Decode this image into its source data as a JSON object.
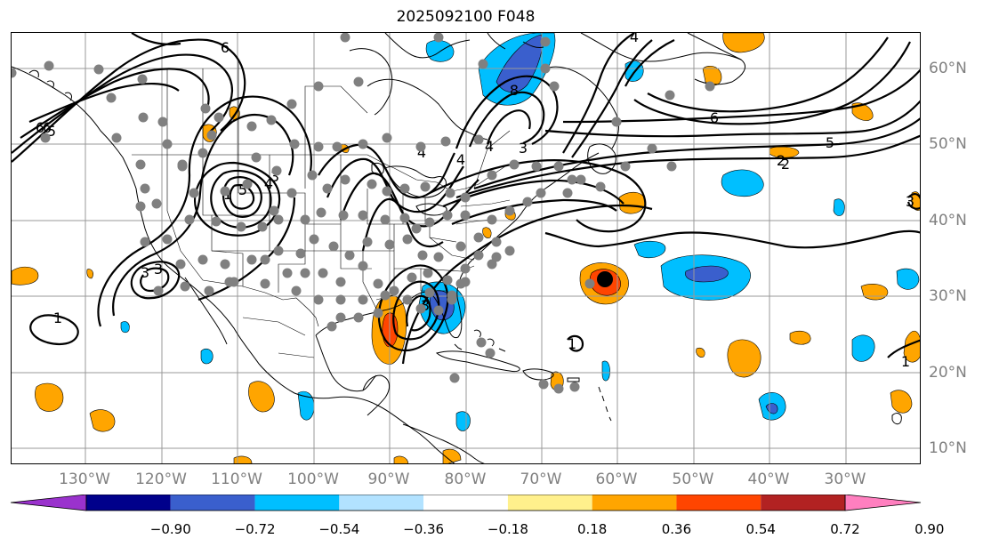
{
  "title": "2025092100 F048",
  "lat_labels": [
    "60°N",
    "50°N",
    "40°N",
    "30°N",
    "20°N",
    "10°N"
  ],
  "lon_labels": [
    "130°W",
    "120°W",
    "110°W",
    "100°W",
    "90°W",
    "80°W",
    "70°W",
    "60°W",
    "50°W",
    "40°W",
    "30°W"
  ],
  "colorbar": {
    "ticks": [
      "−0.90",
      "−0.72",
      "−0.54",
      "−0.36",
      "−0.18",
      "0.18",
      "0.36",
      "0.54",
      "0.72",
      "0.90"
    ],
    "colors": [
      "#9a32cd",
      "#00008b",
      "#3a5fcd",
      "#00bfff",
      "#b2e2ff",
      "#ffffff",
      "#fff08c",
      "#ffa500",
      "#ff4500",
      "#b22222",
      "#ff7fbf"
    ]
  },
  "colors": {
    "coast": "#000000",
    "contour": "#000000",
    "grid": "#999999",
    "station": "#808080",
    "center_marker": "#000000"
  },
  "contour_labels": [
    "6",
    "6",
    "5",
    "4",
    "3",
    "1",
    "5",
    "4",
    "6",
    "4",
    "3",
    "2",
    "6",
    "5",
    "2",
    "3",
    "1",
    "3",
    "1",
    "3",
    "3",
    "1",
    "8",
    "4",
    "4"
  ]
}
